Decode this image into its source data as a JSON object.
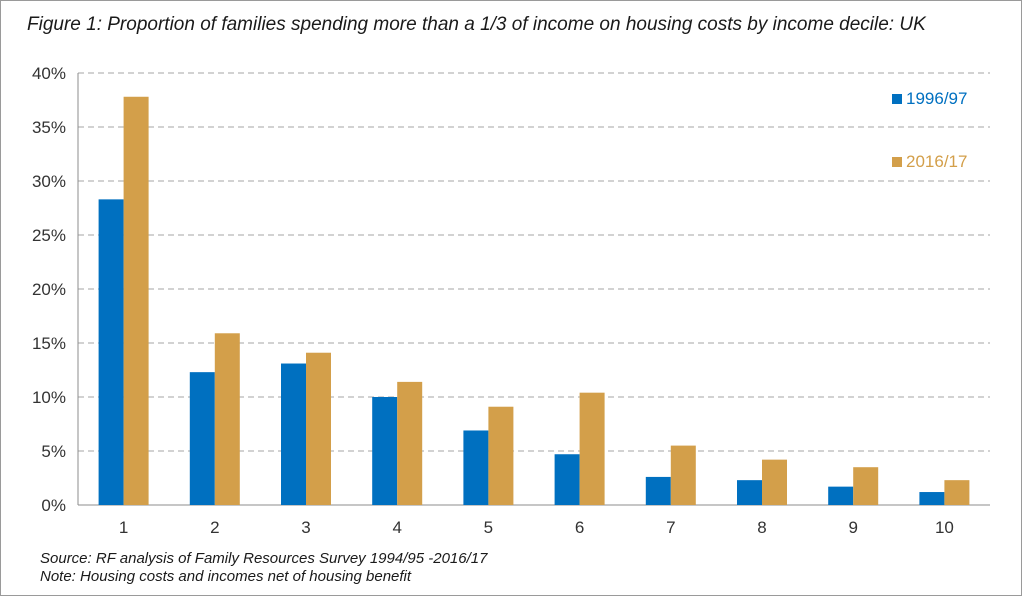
{
  "title": "Figure 1: Proportion of families spending more than a 1/3 of income on housing costs by income decile: UK",
  "source": "Source: RF analysis of Family Resources Survey 1994/95 -2016/17",
  "note": "Note: Housing costs and incomes net of housing benefit",
  "chart_data": {
    "type": "bar",
    "categories": [
      "1",
      "2",
      "3",
      "4",
      "5",
      "6",
      "7",
      "8",
      "9",
      "10"
    ],
    "series": [
      {
        "name": "1996/97",
        "color": "#0070C0",
        "values": [
          0.283,
          0.123,
          0.131,
          0.1,
          0.069,
          0.047,
          0.026,
          0.023,
          0.017,
          0.012
        ]
      },
      {
        "name": "2016/17",
        "color": "#D39F4A",
        "values": [
          0.378,
          0.159,
          0.141,
          0.114,
          0.091,
          0.104,
          0.055,
          0.042,
          0.035,
          0.023
        ]
      }
    ],
    "ylim": [
      0,
      0.4
    ],
    "yticks": [
      "0%",
      "5%",
      "10%",
      "15%",
      "20%",
      "25%",
      "30%",
      "35%",
      "40%"
    ],
    "grid": true,
    "legend": "top-right"
  }
}
